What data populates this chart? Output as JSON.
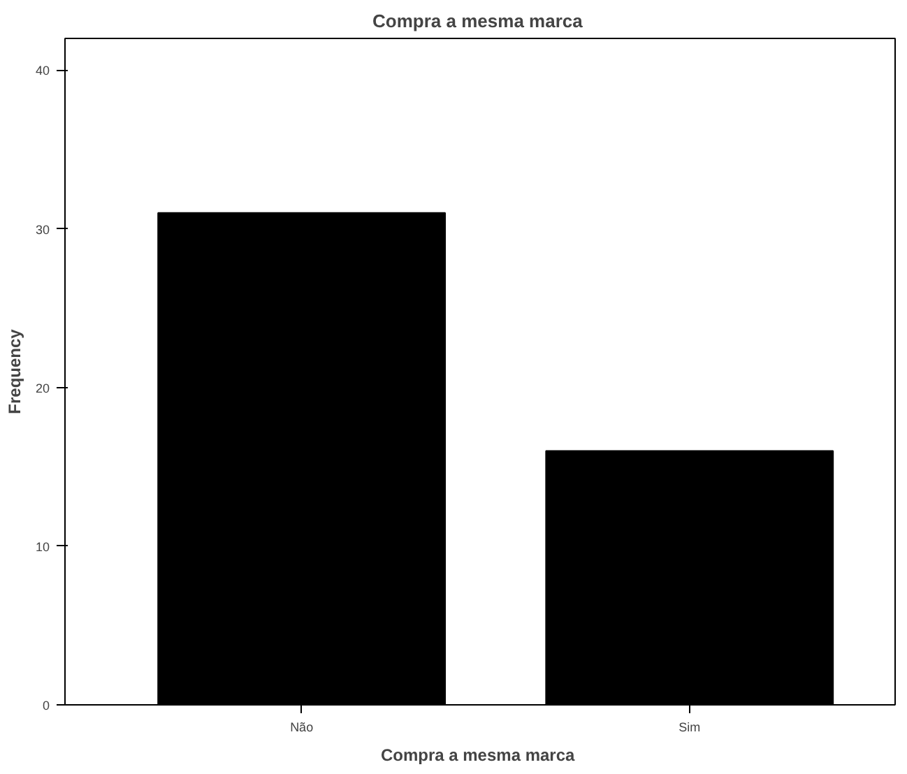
{
  "chart_data": {
    "type": "bar",
    "title": "Compra  a mesma marca",
    "xlabel": "Compra  a mesma marca",
    "ylabel": "Frequency",
    "categories": [
      "Não",
      "Sim"
    ],
    "values": [
      31,
      16
    ],
    "color": "#000000",
    "ylim": [
      0,
      42
    ],
    "yticks": [
      0,
      10,
      20,
      30,
      40
    ]
  }
}
